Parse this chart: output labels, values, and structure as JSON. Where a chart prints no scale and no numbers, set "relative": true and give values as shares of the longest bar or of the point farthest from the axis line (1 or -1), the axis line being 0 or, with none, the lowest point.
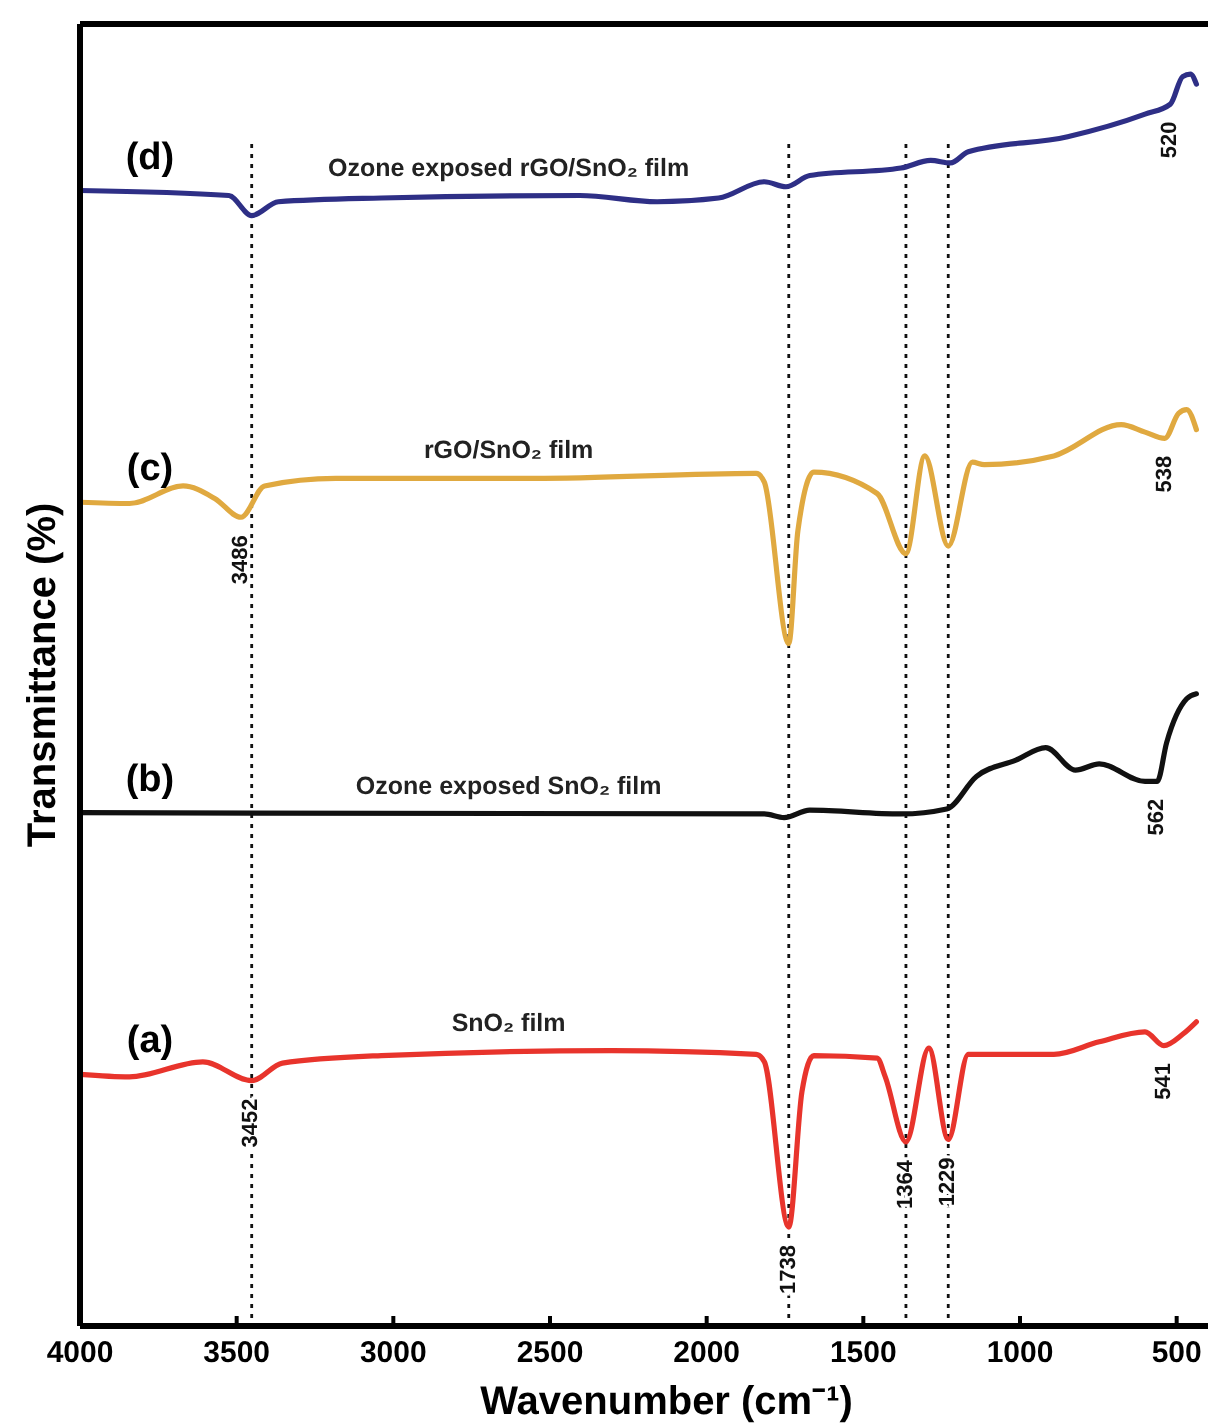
{
  "chart_data": {
    "type": "line",
    "relative": true,
    "xlabel": "Wavenumber (cm⁻¹)",
    "ylabel": "Transmittance (%)",
    "xlim": [
      4000,
      400
    ],
    "xticks": [
      4000,
      3500,
      3000,
      2500,
      2000,
      1500,
      1000,
      500
    ],
    "grid": false,
    "line_style": "solid",
    "marker": "none",
    "series": [
      {
        "name": "Ozone exposed rGO/SnO₂ film",
        "color": "#2e2f86",
        "x": [
          4000,
          3525,
          3452,
          3367,
          3038,
          2405,
          2158,
          1962,
          1816,
          1747,
          1671,
          1380,
          1285,
          1222,
          1165,
          848,
          601,
          520,
          481,
          456,
          437
        ],
        "values": [
          0.907,
          0.903,
          0.887,
          0.898,
          0.901,
          0.903,
          0.898,
          0.901,
          0.914,
          0.91,
          0.919,
          0.925,
          0.931,
          0.929,
          0.938,
          0.95,
          0.968,
          0.976,
          0.998,
          1.0,
          0.992
        ]
      },
      {
        "name": "rGO/SnO₂ film",
        "color": "#e0a940",
        "x": [
          4000,
          3842,
          3671,
          3570,
          3486,
          3411,
          3184,
          2551,
          1842,
          1816,
          1738,
          1709,
          1658,
          1456,
          1364,
          1304,
          1229,
          1152,
          1114,
          892,
          677,
          601,
          538,
          494,
          468,
          437
        ],
        "values": [
          0.658,
          0.657,
          0.671,
          0.661,
          0.646,
          0.671,
          0.677,
          0.677,
          0.681,
          0.674,
          0.545,
          0.635,
          0.682,
          0.665,
          0.617,
          0.695,
          0.623,
          0.69,
          0.688,
          0.695,
          0.72,
          0.714,
          0.709,
          0.729,
          0.732,
          0.716
        ]
      },
      {
        "name": "Ozone exposed SnO₂ film",
        "color": "#111111",
        "x": [
          4000,
          1816,
          1753,
          1671,
          1380,
          1234,
          1139,
          1013,
          918,
          823,
          747,
          601,
          562,
          532,
          468,
          437
        ],
        "values": [
          0.41,
          0.409,
          0.406,
          0.412,
          0.409,
          0.413,
          0.439,
          0.452,
          0.462,
          0.444,
          0.449,
          0.435,
          0.435,
          0.466,
          0.501,
          0.505
        ]
      },
      {
        "name": "SnO₂ film",
        "color": "#e8342c",
        "x": [
          4000,
          3842,
          3608,
          3452,
          3354,
          3038,
          2304,
          1842,
          1816,
          1738,
          1696,
          1658,
          1456,
          1430,
          1364,
          1291,
          1229,
          1165,
          892,
          747,
          601,
          541,
          481,
          437
        ],
        "values": [
          0.201,
          0.199,
          0.211,
          0.196,
          0.21,
          0.216,
          0.22,
          0.217,
          0.211,
          0.079,
          0.187,
          0.216,
          0.214,
          0.199,
          0.147,
          0.222,
          0.149,
          0.217,
          0.217,
          0.227,
          0.235,
          0.224,
          0.233,
          0.243
        ]
      }
    ],
    "ref_lines": [
      {
        "axis": "x",
        "value": 3452,
        "line_style": "dotted"
      },
      {
        "axis": "x",
        "value": 1738,
        "line_style": "dotted"
      },
      {
        "axis": "x",
        "value": 1364,
        "line_style": "dotted"
      },
      {
        "axis": "x",
        "value": 1229,
        "line_style": "dotted"
      }
    ],
    "annotations": [
      "(d)",
      "(c)",
      "(b)",
      "(a)",
      {
        "text": "3452",
        "x": 3452,
        "y": 0.196
      },
      {
        "text": "3486",
        "x": 3486,
        "y": 0.646
      },
      {
        "text": "1738",
        "x": 1738,
        "y": 0.079
      },
      {
        "text": "1364",
        "x": 1364,
        "y": 0.147
      },
      {
        "text": "1229",
        "x": 1229,
        "y": 0.149
      },
      {
        "text": "541",
        "x": 541,
        "y": 0.224
      },
      {
        "text": "562",
        "x": 562,
        "y": 0.435
      },
      {
        "text": "538",
        "x": 538,
        "y": 0.709
      },
      {
        "text": "520",
        "x": 520,
        "y": 0.976
      }
    ]
  }
}
